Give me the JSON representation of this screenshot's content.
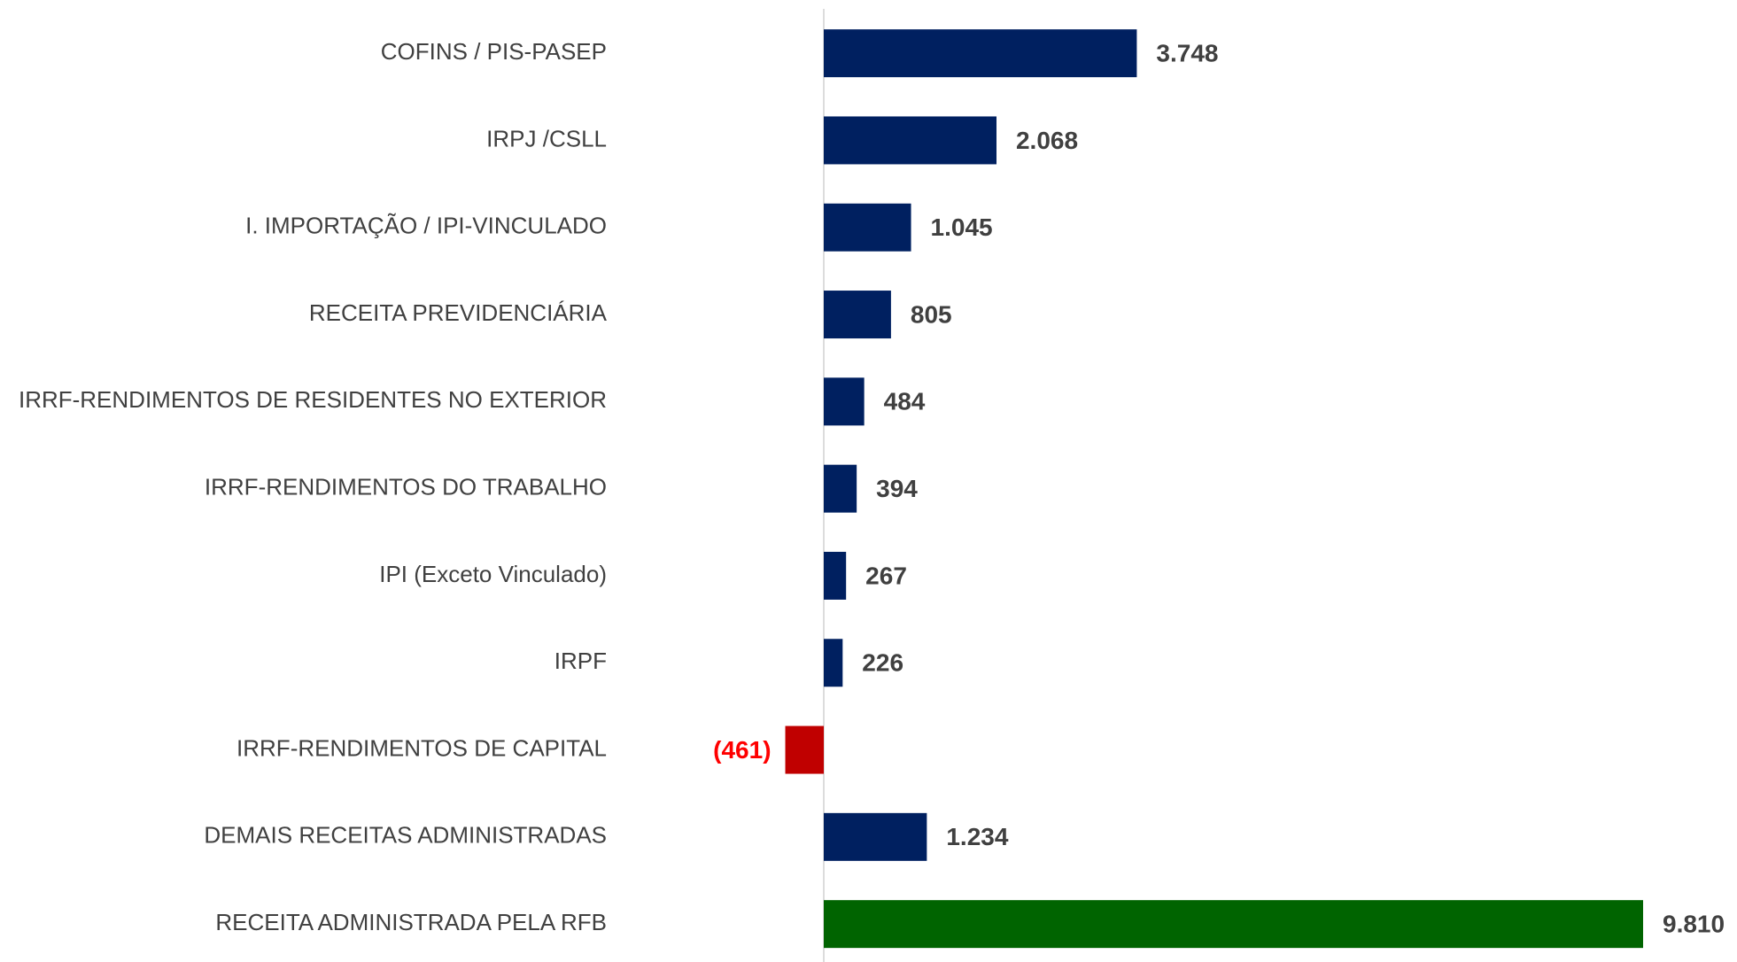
{
  "chart_data": {
    "type": "barh",
    "categories": [
      "COFINS / PIS-PASEP",
      "IRPJ /CSLL",
      "I. IMPORTAÇÃO / IPI-VINCULADO",
      "RECEITA PREVIDENCIÁRIA",
      "IRRF-RENDIMENTOS DE RESIDENTES NO EXTERIOR",
      "IRRF-RENDIMENTOS DO TRABALHO",
      "IPI (Exceto Vinculado)",
      "IRPF",
      "IRRF-RENDIMENTOS DE CAPITAL",
      "DEMAIS RECEITAS ADMINISTRADAS",
      "RECEITA ADMINISTRADA PELA RFB"
    ],
    "values": [
      3748,
      2068,
      1045,
      805,
      484,
      394,
      267,
      226,
      -461,
      1234,
      9810
    ],
    "value_labels": [
      "3.748",
      "2.068",
      "1.045",
      "805",
      "484",
      "394",
      "267",
      "226",
      "(461)",
      "1.234",
      "9.810"
    ],
    "colors": [
      "#002060",
      "#002060",
      "#002060",
      "#002060",
      "#002060",
      "#002060",
      "#002060",
      "#002060",
      "#c00000",
      "#002060",
      "#006400"
    ],
    "value_label_colors": [
      "#404040",
      "#404040",
      "#404040",
      "#404040",
      "#404040",
      "#404040",
      "#404040",
      "#404040",
      "#ff0000",
      "#404040",
      "#404040"
    ]
  }
}
